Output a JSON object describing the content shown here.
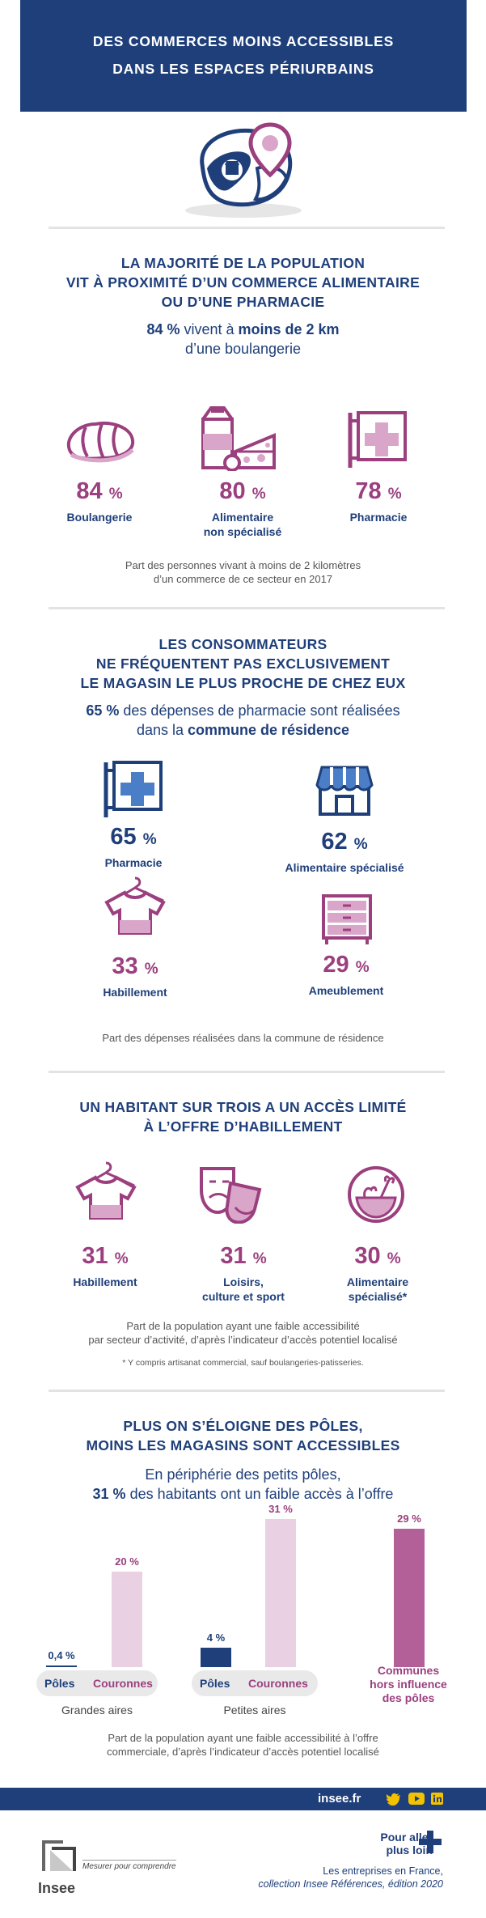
{
  "header": {
    "line1": "DES COMMERCES MOINS ACCESSIBLES",
    "line2": "DANS LES ESPACES PÉRIURBAINS"
  },
  "colors": {
    "navy": "#1f3f7a",
    "plum": "#9b3f7f",
    "light_plum": "#d9a6c9",
    "pale_plum": "#ead0e3",
    "blue_icon": "#4a7ec7"
  },
  "section1": {
    "title": [
      "LA MAJORITÉ DE LA POPULATION",
      "VIT À PROXIMITÉ D’UN COMMERCE ALIMENTAIRE",
      "OU D’UNE PHARMACIE"
    ],
    "subtitle_bold1": "84 %",
    "subtitle_text1": " vivent à ",
    "subtitle_bold2": "moins de 2 km",
    "subtitle_line2": "d’une boulangerie",
    "stats": [
      {
        "value": "84",
        "unit": "%",
        "label": "Boulangerie",
        "label2": "",
        "icon": "bread-icon"
      },
      {
        "value": "80",
        "unit": "%",
        "label": "Alimentaire",
        "label2": "non spécialisé",
        "icon": "groceries-icon"
      },
      {
        "value": "78",
        "unit": "%",
        "label": "Pharmacie",
        "label2": "",
        "icon": "pharmacy-sign-icon"
      }
    ],
    "caption": [
      "Part des personnes vivant à moins de 2 kilomètres",
      "d’un commerce de ce secteur en 2017"
    ]
  },
  "section2": {
    "title": [
      "LES CONSOMMATEURS",
      "NE FRÉQUENTENT PAS EXCLUSIVEMENT",
      "LE MAGASIN LE PLUS PROCHE DE CHEZ EUX"
    ],
    "subtitle_bold1": "65 %",
    "subtitle_text1": " des dépenses de pharmacie sont réalisées",
    "subtitle_text2": "dans la ",
    "subtitle_bold2": "commune de résidence",
    "stats": [
      {
        "value": "65",
        "unit": "%",
        "label": "Pharmacie",
        "icon": "pharmacy-sign-icon"
      },
      {
        "value": "62",
        "unit": "%",
        "label": "Alimentaire spécialisé",
        "icon": "shop-icon"
      },
      {
        "value": "33",
        "unit": "%",
        "label": "Habillement",
        "icon": "tshirt-icon"
      },
      {
        "value": "29",
        "unit": "%",
        "label": "Ameublement",
        "icon": "dresser-icon"
      }
    ],
    "caption": "Part des dépenses réalisées dans la commune de résidence"
  },
  "section3": {
    "title": [
      "UN HABITANT SUR TROIS A UN ACCÈS LIMITÉ",
      "À L’OFFRE D’HABILLEMENT"
    ],
    "stats": [
      {
        "value": "31",
        "unit": "%",
        "label": "Habillement",
        "label2": "",
        "icon": "tshirt-icon"
      },
      {
        "value": "31",
        "unit": "%",
        "label": "Loisirs,",
        "label2": "culture et sport",
        "icon": "theater-masks-icon"
      },
      {
        "value": "30",
        "unit": "%",
        "label": "Alimentaire",
        "label2": "spécialisé*",
        "icon": "vegetable-bowl-icon"
      }
    ],
    "caption": [
      "Part de la population ayant une faible accessibilité",
      "par secteur d’activité, d’après l’indicateur d’accès potentiel localisé"
    ],
    "note": "* Y compris artisanat commercial, sauf boulangeries-patisseries."
  },
  "section4": {
    "title": [
      "PLUS ON S’ÉLOIGNE DES PÔLES,",
      "MOINS LES MAGASINS SONT ACCESSIBLES"
    ],
    "subtitle_line1": "En périphérie des petits pôles,",
    "subtitle_bold": "31 %",
    "subtitle_text": " des habitants ont un faible accès à l’offre",
    "caption": [
      "Part de la population ayant une faible accessibilité à l’offre",
      "commerciale, d’après l’indicateur d’accès potentiel localisé"
    ]
  },
  "chart_data": {
    "type": "bar",
    "unit": "%",
    "groups": [
      {
        "name": "Grandes aires",
        "bars": [
          {
            "category": "Pôles",
            "value": 0.4,
            "label": "0,4 %"
          },
          {
            "category": "Couronnes",
            "value": 20,
            "label": "20 %"
          }
        ]
      },
      {
        "name": "Petites aires",
        "bars": [
          {
            "category": "Pôles",
            "value": 4,
            "label": "4 %"
          },
          {
            "category": "Couronnes",
            "value": 31,
            "label": "31 %"
          }
        ]
      },
      {
        "name": "",
        "bars": [
          {
            "category": "Communes hors influence des pôles",
            "value": 29,
            "label": "29 %"
          }
        ]
      }
    ],
    "category_labels": {
      "poles": "Pôles",
      "couronnes": "Couronnes",
      "communes": [
        "Communes",
        "hors influence",
        "des pôles"
      ]
    },
    "colors": {
      "poles": "#1f3f7a",
      "couronnes": "#ead0e3",
      "communes": "#b35f98"
    }
  },
  "footer": {
    "site": "insee.fr",
    "social": [
      "twitter-icon",
      "youtube-icon",
      "linkedin-icon"
    ],
    "more_line1": "Pour aller",
    "more_line2": "plus loin",
    "ref_line1": "Les entreprises en France,",
    "ref_line2": "collection Insee Références, édition 2020",
    "logo_text": "Insee",
    "tagline": "Mesurer pour comprendre"
  }
}
